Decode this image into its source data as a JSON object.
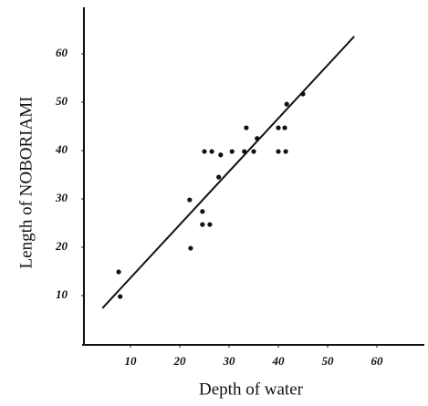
{
  "chart_data": {
    "type": "scatter",
    "xlabel": "Depth of water",
    "ylabel": "Length of NOBORIAMI",
    "x": [
      7.6,
      7.9,
      22.0,
      22.2,
      24.6,
      24.6,
      26.1,
      25.0,
      26.5,
      28.3,
      27.9,
      30.6,
      33.1,
      33.5,
      35.0,
      35.7,
      40.0,
      41.3,
      40.0,
      41.5,
      41.7,
      45.0
    ],
    "values": [
      14.9,
      9.8,
      29.8,
      19.8,
      27.4,
      24.7,
      24.7,
      39.8,
      39.8,
      39.1,
      34.5,
      39.8,
      39.8,
      44.7,
      39.8,
      42.5,
      44.7,
      44.7,
      39.8,
      39.8,
      49.6,
      51.7
    ],
    "color": "#111111",
    "fit_line": {
      "x": [
        4.3,
        55.4
      ],
      "values": [
        7.4,
        63.6
      ]
    },
    "xlim": [
      0,
      70
    ],
    "ylim": [
      0,
      70
    ],
    "xticks": [
      10,
      20,
      30,
      40,
      50,
      60
    ],
    "yticks": [
      10,
      20,
      30,
      40,
      50,
      60
    ],
    "grid": false
  }
}
